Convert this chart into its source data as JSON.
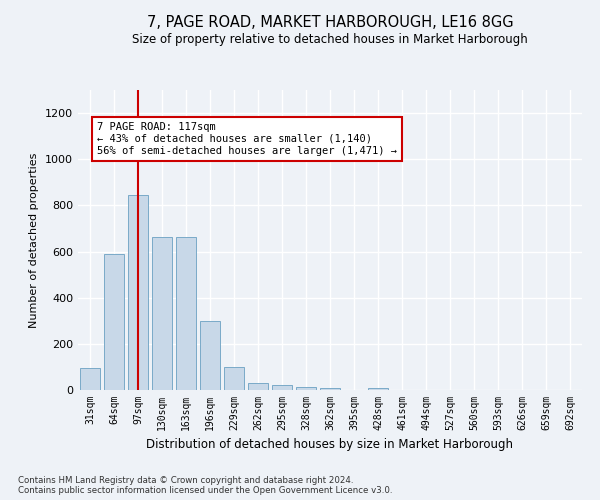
{
  "title": "7, PAGE ROAD, MARKET HARBOROUGH, LE16 8GG",
  "subtitle": "Size of property relative to detached houses in Market Harborough",
  "xlabel": "Distribution of detached houses by size in Market Harborough",
  "ylabel": "Number of detached properties",
  "bar_color": "#c8d8e8",
  "bar_edge_color": "#7aaac8",
  "vline_color": "#cc0000",
  "vline_x": 2,
  "categories": [
    "31sqm",
    "64sqm",
    "97sqm",
    "130sqm",
    "163sqm",
    "196sqm",
    "229sqm",
    "262sqm",
    "295sqm",
    "328sqm",
    "362sqm",
    "395sqm",
    "428sqm",
    "461sqm",
    "494sqm",
    "527sqm",
    "560sqm",
    "593sqm",
    "626sqm",
    "659sqm",
    "692sqm"
  ],
  "values": [
    95,
    590,
    845,
    665,
    665,
    300,
    100,
    32,
    20,
    15,
    8,
    0,
    10,
    0,
    0,
    0,
    0,
    0,
    0,
    0,
    0
  ],
  "ylim": [
    0,
    1300
  ],
  "yticks": [
    0,
    200,
    400,
    600,
    800,
    1000,
    1200
  ],
  "annotation_text": "7 PAGE ROAD: 117sqm\n← 43% of detached houses are smaller (1,140)\n56% of semi-detached houses are larger (1,471) →",
  "footnote1": "Contains HM Land Registry data © Crown copyright and database right 2024.",
  "footnote2": "Contains public sector information licensed under the Open Government Licence v3.0.",
  "bg_color": "#eef2f7",
  "grid_color": "#ffffff"
}
